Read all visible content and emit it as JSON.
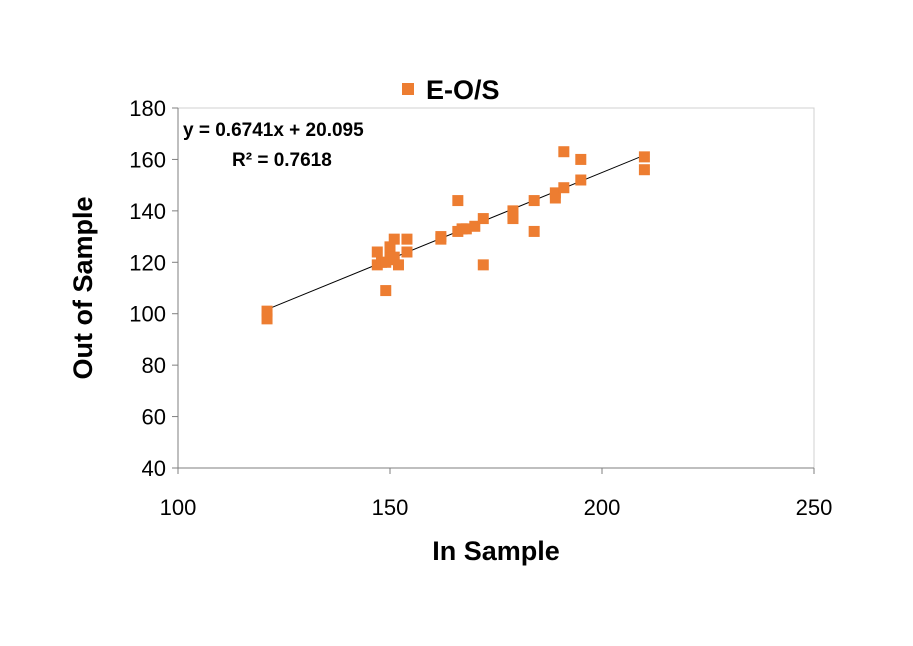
{
  "chart_data": {
    "type": "scatter",
    "xlabel": "In Sample",
    "ylabel": "Out of  Sample",
    "xlim": [
      100,
      250
    ],
    "ylim": [
      40,
      180
    ],
    "xticks": [
      "100",
      "150",
      "200",
      "250"
    ],
    "yticks": [
      "40",
      "60",
      "80",
      "100",
      "120",
      "140",
      "160",
      "180"
    ],
    "grid": false,
    "legend_position": "top",
    "marker_color": "#ED7D31",
    "series": [
      {
        "name": "E-O/S",
        "points": [
          [
            121,
            101
          ],
          [
            121,
            98
          ],
          [
            147,
            124
          ],
          [
            147,
            119
          ],
          [
            148,
            120
          ],
          [
            149,
            109
          ],
          [
            149,
            120
          ],
          [
            150,
            121
          ],
          [
            150,
            125
          ],
          [
            150,
            126
          ],
          [
            151,
            129
          ],
          [
            151,
            122
          ],
          [
            152,
            119
          ],
          [
            154,
            124
          ],
          [
            154,
            129
          ],
          [
            162,
            130
          ],
          [
            162,
            129
          ],
          [
            166,
            132
          ],
          [
            166,
            144
          ],
          [
            167,
            133
          ],
          [
            168,
            133
          ],
          [
            170,
            134
          ],
          [
            172,
            137
          ],
          [
            172,
            119
          ],
          [
            179,
            140
          ],
          [
            179,
            138
          ],
          [
            179,
            137
          ],
          [
            184,
            132
          ],
          [
            184,
            144
          ],
          [
            189,
            147
          ],
          [
            189,
            145
          ],
          [
            191,
            149
          ],
          [
            191,
            163
          ],
          [
            195,
            152
          ],
          [
            195,
            160
          ],
          [
            210,
            161
          ],
          [
            210,
            156
          ]
        ]
      }
    ],
    "trendline": {
      "type": "linear",
      "slope": 0.6741,
      "intercept": 20.095,
      "x_range": [
        121,
        210
      ],
      "equation": "y = 0.6741x + 20.095",
      "r_squared": "R² = 0.7618"
    }
  }
}
